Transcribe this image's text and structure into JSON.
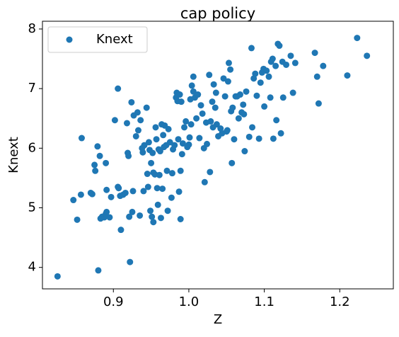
{
  "chart_data": {
    "type": "scatter",
    "title": "cap policy",
    "x_label": "Z",
    "y_label": "Knext",
    "x": [
      0.826,
      0.847,
      0.852,
      0.857,
      0.858,
      0.87,
      0.872,
      0.875,
      0.876,
      0.879,
      0.88,
      0.882,
      0.883,
      0.885,
      0.888,
      0.89,
      0.891,
      0.891,
      0.89,
      0.895,
      0.897,
      0.902,
      0.906,
      0.906,
      0.907,
      0.909,
      0.91,
      0.913,
      0.916,
      0.918,
      0.919,
      0.92,
      0.921,
      0.922,
      0.924,
      0.925,
      0.926,
      0.927,
      0.93,
      0.932,
      0.933,
      0.935,
      0.936,
      0.938,
      0.939,
      0.94,
      0.941,
      0.944,
      0.945,
      0.946,
      0.947,
      0.948,
      0.949,
      0.95,
      0.951,
      0.952,
      0.953,
      0.953,
      0.955,
      0.956,
      0.957,
      0.958,
      0.959,
      0.96,
      0.961,
      0.962,
      0.963,
      0.964,
      0.965,
      0.966,
      0.967,
      0.968,
      0.97,
      0.971,
      0.972,
      0.973,
      0.975,
      0.977,
      0.978,
      0.979,
      0.981,
      0.983,
      0.984,
      0.985,
      0.986,
      0.987,
      0.988,
      0.989,
      0.989,
      0.99,
      0.991,
      0.992,
      0.994,
      0.996,
      0.998,
      1.0,
      1.001,
      1.002,
      1.003,
      1.004,
      1.006,
      1.006,
      1.008,
      1.01,
      1.012,
      1.014,
      1.016,
      1.018,
      1.02,
      1.021,
      1.023,
      1.024,
      1.027,
      1.028,
      1.029,
      1.031,
      1.032,
      1.033,
      1.035,
      1.036,
      1.037,
      1.039,
      1.042,
      1.044,
      1.046,
      1.048,
      1.05,
      1.051,
      1.052,
      1.053,
      1.055,
      1.056,
      1.057,
      1.058,
      1.06,
      1.062,
      1.064,
      1.066,
      1.068,
      1.07,
      1.072,
      1.073,
      1.074,
      1.076,
      1.08,
      1.083,
      1.084,
      1.086,
      1.088,
      1.09,
      1.093,
      1.095,
      1.097,
      1.099,
      1.1,
      1.103,
      1.106,
      1.108,
      1.109,
      1.111,
      1.112,
      1.115,
      1.116,
      1.118,
      1.12,
      1.122,
      1.124,
      1.125,
      1.129,
      1.135,
      1.138,
      1.141,
      1.167,
      1.17,
      1.172,
      1.178,
      1.21,
      1.223,
      1.236
    ],
    "series": [
      {
        "name": "Knext",
        "color": "#1f77b4",
        "values": [
          3.85,
          5.13,
          4.8,
          5.22,
          6.17,
          5.25,
          5.23,
          5.72,
          5.62,
          6.03,
          3.95,
          5.87,
          4.82,
          4.85,
          4.84,
          4.9,
          5.3,
          4.93,
          5.75,
          4.84,
          5.18,
          6.47,
          7.0,
          5.35,
          5.33,
          5.2,
          4.63,
          5.22,
          5.25,
          6.42,
          5.92,
          5.87,
          4.85,
          4.09,
          6.77,
          4.93,
          5.28,
          6.55,
          6.2,
          6.6,
          6.3,
          4.87,
          6.47,
          6.0,
          5.93,
          5.28,
          6.05,
          6.68,
          5.57,
          5.35,
          6.1,
          5.97,
          4.95,
          5.75,
          4.85,
          5.92,
          4.76,
          5.59,
          5.56,
          6.35,
          6.15,
          5.33,
          5.05,
          5.98,
          5.55,
          5.95,
          4.83,
          6.4,
          5.32,
          6.22,
          6.02,
          6.38,
          6.05,
          5.62,
          4.95,
          6.32,
          6.1,
          5.17,
          5.58,
          5.98,
          6.05,
          6.85,
          6.93,
          6.79,
          6.15,
          5.27,
          6.9,
          5.62,
          4.81,
          6.78,
          5.9,
          6.08,
          6.35,
          6.45,
          6.02,
          6.06,
          6.18,
          6.82,
          6.4,
          7.05,
          7.2,
          6.95,
          6.85,
          6.5,
          6.9,
          6.17,
          6.72,
          6.58,
          6.0,
          5.43,
          6.43,
          6.07,
          7.23,
          5.6,
          6.45,
          6.78,
          6.35,
          7.07,
          6.68,
          6.93,
          6.4,
          6.2,
          6.33,
          6.25,
          7.17,
          6.87,
          6.28,
          6.3,
          7.12,
          7.43,
          7.32,
          6.62,
          5.75,
          6.68,
          6.15,
          6.87,
          6.87,
          6.5,
          6.9,
          6.6,
          6.73,
          6.57,
          5.95,
          6.95,
          6.19,
          7.68,
          6.35,
          7.17,
          7.25,
          6.88,
          6.16,
          7.1,
          7.27,
          7.33,
          6.7,
          7.3,
          7.2,
          6.85,
          7.45,
          7.5,
          6.16,
          7.38,
          6.47,
          7.75,
          7.72,
          6.25,
          7.45,
          6.85,
          7.4,
          7.55,
          6.93,
          7.43,
          7.6,
          7.2,
          6.75,
          7.38,
          7.22,
          7.85,
          7.55
        ]
      }
    ],
    "xlim": [
      0.806,
      1.271
    ],
    "ylim": [
      3.64,
      8.13
    ],
    "xticks": [
      0.9,
      {
        "value": 1,
        "label": "1.0"
      },
      1.1,
      1.2
    ],
    "yticks": [
      4,
      5,
      6,
      7,
      8
    ],
    "legend": "upper left"
  }
}
